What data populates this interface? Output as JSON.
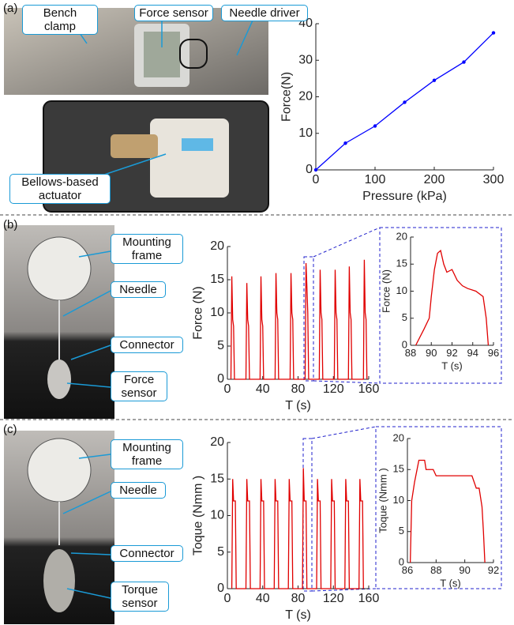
{
  "panels": {
    "a": "(a)",
    "b": "(b)",
    "c": "(c)"
  },
  "callouts": {
    "a": [
      "Bench clamp",
      "Force sensor",
      "Needle driver",
      "Bellows-based actuator"
    ],
    "b": [
      "Mounting frame",
      "Needle",
      "Connector",
      "Force sensor"
    ],
    "c": [
      "Mounting frame",
      "Needle",
      "Connector",
      "Torque sensor"
    ]
  },
  "chart_data": [
    {
      "type": "line",
      "markers": true,
      "color": "#0000ff",
      "xlabel": "Pressure (kPa)",
      "ylabel": "Force(N)",
      "x": [
        0,
        50,
        100,
        150,
        200,
        250,
        300
      ],
      "values": [
        0,
        7.3,
        12,
        18.5,
        24.5,
        29.5,
        37.5
      ],
      "xlim": [
        0,
        300
      ],
      "ylim": [
        0,
        40
      ],
      "xticks": [
        0,
        100,
        200,
        300
      ],
      "yticks": [
        0,
        10,
        20,
        30,
        40
      ]
    },
    {
      "type": "line",
      "markers": false,
      "color": "#e00000",
      "xlabel": "T (s)",
      "ylabel": "Force (N)",
      "x": [
        4,
        5,
        6,
        7,
        8,
        21,
        22,
        23,
        24,
        25,
        37,
        38,
        39,
        40,
        41,
        54,
        55,
        56,
        57,
        58,
        71,
        72,
        73,
        74,
        75,
        88,
        89,
        90,
        91,
        92,
        104,
        105,
        106,
        107,
        108,
        121,
        122,
        123,
        124,
        125,
        137,
        138,
        139,
        140,
        141,
        154,
        155,
        156,
        157,
        158
      ],
      "values": [
        0,
        15.5,
        9,
        8,
        0,
        0,
        14.5,
        9,
        8,
        0,
        0,
        15.5,
        9,
        8,
        0,
        0,
        16,
        10,
        9,
        0,
        0,
        16,
        10,
        9,
        0,
        0,
        17.5,
        14,
        10,
        0,
        0,
        16.5,
        10,
        9,
        0,
        0,
        16.5,
        10,
        9,
        0,
        0,
        17,
        10,
        9,
        0,
        0,
        18,
        10,
        9,
        0
      ],
      "xlim": [
        0,
        160
      ],
      "ylim": [
        0,
        20
      ],
      "xticks": [
        0,
        40,
        80,
        120,
        160
      ],
      "yticks": [
        0,
        5,
        10,
        15,
        20
      ]
    },
    {
      "type": "line",
      "markers": false,
      "color": "#e00000",
      "xlabel": "T (s)",
      "ylabel": "Force (N)",
      "x": [
        88.5,
        89.3,
        89.8,
        90,
        90.3,
        90.6,
        90.9,
        91.2,
        91.5,
        92,
        92.5,
        93,
        93.5,
        94.3,
        95,
        95.3,
        95.5
      ],
      "values": [
        0,
        3,
        5,
        9,
        14,
        17,
        17.5,
        15,
        13.5,
        14,
        12,
        11,
        10.5,
        10,
        9,
        5,
        0
      ],
      "xlim": [
        88,
        96
      ],
      "ylim": [
        0,
        20
      ],
      "xticks": [
        88,
        90,
        92,
        94,
        96
      ],
      "yticks": [
        0,
        5,
        10,
        15,
        20
      ]
    },
    {
      "type": "line",
      "markers": false,
      "color": "#e00000",
      "xlabel": "T (s)",
      "ylabel": "Toque (Nmm )",
      "x": [
        5,
        6,
        7,
        9,
        10,
        21,
        22,
        23,
        25,
        26,
        37,
        38,
        39,
        41,
        42,
        53,
        54,
        55,
        57,
        58,
        69,
        70,
        71,
        73,
        74,
        85,
        86,
        87,
        89,
        90,
        101,
        102,
        103,
        105,
        106,
        117,
        118,
        119,
        121,
        122,
        133,
        134,
        135,
        137,
        138,
        149,
        150,
        151,
        153,
        154
      ],
      "values": [
        0,
        15,
        12,
        12,
        0,
        0,
        15,
        12,
        12,
        0,
        0,
        15,
        12,
        12,
        0,
        0,
        15,
        12,
        12,
        0,
        0,
        15,
        12,
        12,
        0,
        0,
        16.5,
        12,
        12,
        0,
        0,
        15,
        12,
        12,
        0,
        0,
        15,
        12,
        12,
        0,
        0,
        15,
        12,
        12,
        0,
        0,
        15,
        12,
        12,
        0
      ],
      "xlim": [
        0,
        160
      ],
      "ylim": [
        0,
        20
      ],
      "xticks": [
        0,
        40,
        80,
        120,
        160
      ],
      "yticks": [
        0,
        5,
        10,
        15,
        20
      ]
    },
    {
      "type": "line",
      "markers": false,
      "color": "#e00000",
      "xlabel": "T (s)",
      "ylabel": "Toque (Nmm )",
      "x": [
        86.2,
        86.3,
        86.5,
        86.8,
        87.2,
        87.3,
        87.8,
        88,
        90.5,
        90.8,
        91,
        91.2,
        91.3,
        91.4
      ],
      "values": [
        0,
        10,
        13,
        16.5,
        16.5,
        15,
        15,
        14,
        14,
        12,
        12,
        9,
        5,
        0
      ],
      "xlim": [
        86,
        92
      ],
      "ylim": [
        0,
        20
      ],
      "xticks": [
        86,
        88,
        90,
        92
      ],
      "yticks": [
        0,
        5,
        10,
        15,
        20
      ]
    }
  ]
}
